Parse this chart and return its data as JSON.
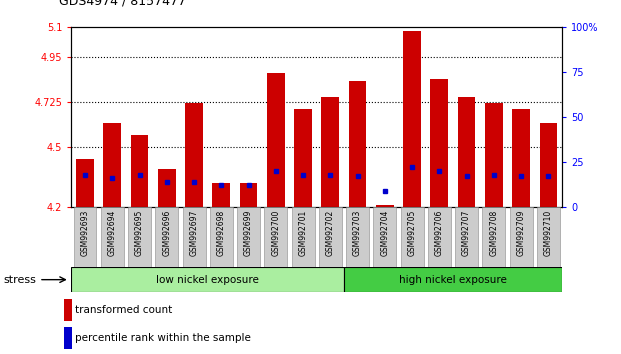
{
  "title": "GDS4974 / 8157477",
  "samples": [
    "GSM992693",
    "GSM992694",
    "GSM992695",
    "GSM992696",
    "GSM992697",
    "GSM992698",
    "GSM992699",
    "GSM992700",
    "GSM992701",
    "GSM992702",
    "GSM992703",
    "GSM992704",
    "GSM992705",
    "GSM992706",
    "GSM992707",
    "GSM992708",
    "GSM992709",
    "GSM992710"
  ],
  "bar_bottom": 4.2,
  "red_values": [
    4.44,
    4.62,
    4.56,
    4.39,
    4.72,
    4.32,
    4.32,
    4.87,
    4.69,
    4.75,
    4.83,
    4.21,
    5.08,
    4.84,
    4.75,
    4.72,
    4.69,
    4.62
  ],
  "blue_percentiles": [
    18,
    16,
    18,
    14,
    14,
    12,
    12,
    20,
    18,
    18,
    17,
    9,
    22,
    20,
    17,
    18,
    17,
    17
  ],
  "ylim_left": [
    4.2,
    5.1
  ],
  "ylim_right": [
    0,
    100
  ],
  "yticks_left": [
    4.2,
    4.5,
    4.725,
    4.95,
    5.1
  ],
  "ytick_labels_left": [
    "4.2",
    "4.5",
    "4.725",
    "4.95",
    "5.1"
  ],
  "yticks_right": [
    0,
    25,
    50,
    75,
    100
  ],
  "ytick_labels_right": [
    "0",
    "25",
    "50",
    "75",
    "100%"
  ],
  "hlines": [
    4.5,
    4.725,
    4.95
  ],
  "n_low": 10,
  "low_label": "low nickel exposure",
  "high_label": "high nickel exposure",
  "stress_label": "stress",
  "legend_red": "transformed count",
  "legend_blue": "percentile rank within the sample",
  "bar_color": "#cc0000",
  "blue_color": "#0000cc",
  "low_bg": "#aaeea0",
  "high_bg": "#44cc44",
  "label_bg": "#cccccc",
  "bar_width": 0.65
}
